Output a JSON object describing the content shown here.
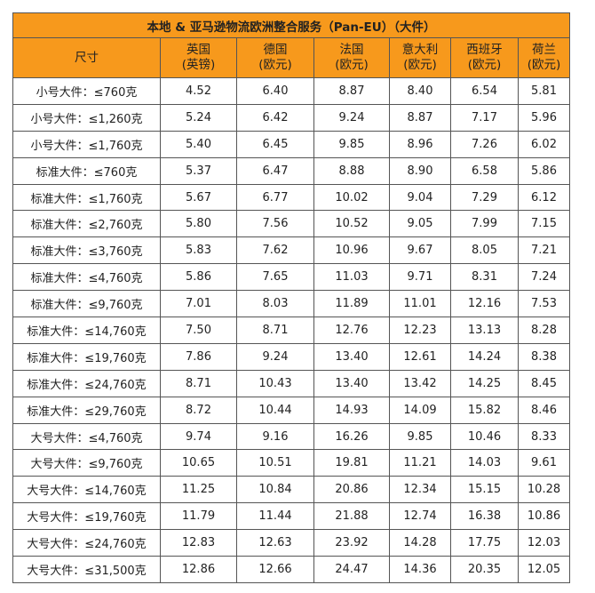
{
  "table": {
    "title": "本地 & 亚马逊物流欧洲整合服务（Pan-EU）（大件）",
    "header": [
      "尺寸",
      "英国\n(英镑)",
      "德国\n(欧元)",
      "法国\n(欧元)",
      "意大利\n(欧元)",
      "西班牙\n(欧元)",
      "荷兰\n(欧元)"
    ],
    "rows": [
      [
        "小号大件：≤760克",
        "4.52",
        "6.40",
        "8.87",
        "8.40",
        "6.54",
        "5.81"
      ],
      [
        "小号大件：≤1,260克",
        "5.24",
        "6.42",
        "9.24",
        "8.87",
        "7.17",
        "5.96"
      ],
      [
        "小号大件：≤1,760克",
        "5.40",
        "6.45",
        "9.85",
        "8.96",
        "7.26",
        "6.02"
      ],
      [
        "标准大件：≤760克",
        "5.37",
        "6.47",
        "8.88",
        "8.90",
        "6.58",
        "5.86"
      ],
      [
        "标准大件：≤1,760克",
        "5.67",
        "6.77",
        "10.02",
        "9.04",
        "7.29",
        "6.12"
      ],
      [
        "标准大件：≤2,760克",
        "5.80",
        "7.56",
        "10.52",
        "9.05",
        "7.99",
        "7.15"
      ],
      [
        "标准大件：≤3,760克",
        "5.83",
        "7.62",
        "10.96",
        "9.67",
        "8.05",
        "7.21"
      ],
      [
        "标准大件：≤4,760克",
        "5.86",
        "7.65",
        "11.03",
        "9.71",
        "8.31",
        "7.24"
      ],
      [
        "标准大件：≤9,760克",
        "7.01",
        "8.03",
        "11.89",
        "11.01",
        "12.16",
        "7.53"
      ],
      [
        "标准大件：≤14,760克",
        "7.50",
        "8.71",
        "12.76",
        "12.23",
        "13.13",
        "8.28"
      ],
      [
        "标准大件：≤19,760克",
        "7.86",
        "9.24",
        "13.40",
        "12.61",
        "14.24",
        "8.38"
      ],
      [
        "标准大件：≤24,760克",
        "8.71",
        "10.43",
        "13.40",
        "13.42",
        "14.25",
        "8.45"
      ],
      [
        "标准大件：≤29,760克",
        "8.72",
        "10.44",
        "14.93",
        "14.09",
        "15.82",
        "8.46"
      ],
      [
        "大号大件：≤4,760克",
        "9.74",
        "9.16",
        "16.26",
        "9.85",
        "10.46",
        "8.33"
      ],
      [
        "大号大件：≤9,760克",
        "10.65",
        "10.51",
        "19.81",
        "11.21",
        "14.03",
        "9.61"
      ],
      [
        "大号大件：≤14,760克",
        "11.25",
        "10.84",
        "20.86",
        "12.34",
        "15.15",
        "10.28"
      ],
      [
        "大号大件：≤19,760克",
        "11.79",
        "11.44",
        "21.88",
        "12.74",
        "16.38",
        "10.86"
      ],
      [
        "大号大件：≤24,760克",
        "12.83",
        "12.63",
        "23.92",
        "14.28",
        "17.75",
        "12.03"
      ],
      [
        "大号大件：≤31,500克",
        "12.86",
        "12.66",
        "24.47",
        "14.36",
        "20.35",
        "12.05"
      ]
    ]
  }
}
